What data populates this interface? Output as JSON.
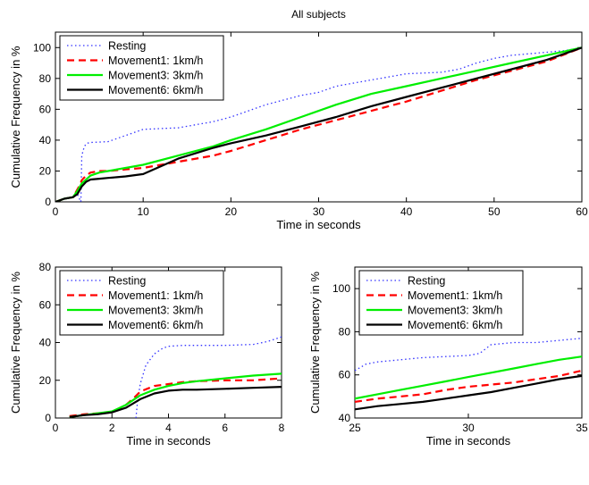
{
  "chart_data": [
    {
      "type": "line",
      "title": "All subjects",
      "xlabel": "Time in seconds",
      "ylabel": "Cumulative Frequency in %",
      "xlim": [
        0,
        60
      ],
      "ylim": [
        0,
        110
      ],
      "xticks": [
        0,
        10,
        20,
        30,
        40,
        50,
        60
      ],
      "yticks": [
        0,
        20,
        40,
        60,
        80,
        100
      ],
      "legend_position": "top-left",
      "series": [
        {
          "name": "Resting",
          "color": "#3333ff",
          "style": "dotted",
          "x": [
            0,
            0.5,
            1,
            2,
            2.5,
            2.9,
            3,
            3.3,
            3.6,
            4,
            6,
            8,
            9,
            10,
            14,
            18,
            20,
            22,
            24,
            26,
            28,
            30,
            32,
            34,
            36,
            38,
            40,
            44,
            46,
            48,
            50,
            52,
            54,
            56,
            58,
            60
          ],
          "y": [
            0,
            1,
            2,
            3,
            5,
            0,
            30,
            36,
            38,
            38.5,
            39,
            43,
            45,
            47,
            48,
            52,
            55,
            59,
            63,
            66,
            69,
            71,
            75,
            77,
            79,
            81,
            83,
            84,
            86,
            90,
            93,
            95,
            96,
            97,
            98,
            100
          ]
        },
        {
          "name": "Movement1: 1km/h",
          "color": "#ff0000",
          "style": "dashed",
          "x": [
            0,
            0.5,
            1,
            2,
            2.8,
            3,
            3.5,
            4,
            5,
            6,
            8,
            10,
            14,
            18,
            20,
            24,
            28,
            32,
            36,
            40,
            44,
            48,
            52,
            56,
            60
          ],
          "y": [
            0,
            1,
            2,
            3,
            11,
            14,
            17,
            19,
            20,
            20,
            21,
            22,
            26,
            30,
            33,
            40,
            47,
            53,
            59,
            65,
            72,
            79,
            85,
            91,
            100
          ]
        },
        {
          "name": "Movement3: 3km/h",
          "color": "#00ee00",
          "style": "solid",
          "x": [
            0,
            0.5,
            1,
            2,
            2.5,
            3,
            4,
            5,
            6,
            7,
            8,
            10,
            14,
            18,
            20,
            24,
            28,
            32,
            36,
            40,
            44,
            48,
            52,
            56,
            60
          ],
          "y": [
            0,
            1,
            2,
            3,
            7,
            12,
            17,
            19,
            20,
            21,
            22,
            24,
            30,
            36,
            40,
            47,
            55,
            63,
            70,
            75,
            80,
            85,
            90,
            95,
            100
          ]
        },
        {
          "name": "Movement6: 6km/h",
          "color": "#000000",
          "style": "solid",
          "x": [
            0,
            0.5,
            1,
            2,
            2.5,
            3,
            3.5,
            4,
            5,
            6,
            7,
            8,
            10,
            14,
            18,
            20,
            24,
            28,
            32,
            36,
            40,
            44,
            48,
            52,
            56,
            60
          ],
          "y": [
            0,
            1,
            2,
            3,
            5,
            10,
            13,
            14.5,
            15,
            15.5,
            16,
            16.5,
            18,
            28,
            35,
            38,
            43,
            49,
            55,
            62,
            68,
            74,
            80,
            86,
            92,
            100
          ]
        }
      ]
    },
    {
      "type": "line",
      "title": "",
      "xlabel": "Time in seconds",
      "ylabel": "Cumulative Frequency in %",
      "xlim": [
        0,
        8
      ],
      "ylim": [
        0,
        80
      ],
      "xticks": [
        0,
        2,
        4,
        6,
        8
      ],
      "yticks": [
        0,
        20,
        40,
        60,
        80
      ],
      "legend_position": "top-left",
      "series": [
        {
          "name": "Resting",
          "color": "#3333ff",
          "style": "dotted",
          "x": [
            2.85,
            2.9,
            3,
            3.2,
            3.5,
            3.8,
            4,
            4.5,
            5,
            6,
            7,
            7.5,
            8
          ],
          "y": [
            0,
            8,
            18,
            28,
            34,
            37,
            38,
            38.5,
            38.5,
            38.5,
            39,
            40.5,
            43
          ]
        },
        {
          "name": "Movement1: 1km/h",
          "color": "#ff0000",
          "style": "dashed",
          "x": [
            0.5,
            1,
            1.5,
            2,
            2.5,
            2.8,
            3,
            3.5,
            4,
            4.5,
            5,
            6,
            7,
            8
          ],
          "y": [
            1,
            2,
            2.5,
            3,
            7,
            11,
            14,
            17,
            18,
            19,
            19.5,
            20,
            20,
            21
          ]
        },
        {
          "name": "Movement3: 3km/h",
          "color": "#00ee00",
          "style": "solid",
          "x": [
            0.5,
            1,
            1.5,
            2,
            2.5,
            3,
            3.5,
            4,
            4.5,
            5,
            6,
            7,
            8
          ],
          "y": [
            0.5,
            1.5,
            2.5,
            3.5,
            7,
            12,
            15,
            17,
            18.5,
            19.5,
            21,
            22.5,
            23.5
          ]
        },
        {
          "name": "Movement6: 6km/h",
          "color": "#000000",
          "style": "solid",
          "x": [
            0.5,
            1,
            1.5,
            2,
            2.5,
            3,
            3.5,
            4,
            4.5,
            5,
            6,
            7,
            8
          ],
          "y": [
            0.5,
            1.5,
            2,
            3,
            5.5,
            10,
            13,
            14.5,
            15,
            15,
            15.5,
            16,
            16.5
          ]
        }
      ]
    },
    {
      "type": "line",
      "title": "",
      "xlabel": "Time in seconds",
      "ylabel": "Cumulative Frequency in %",
      "xlim": [
        25,
        35
      ],
      "ylim": [
        40,
        110
      ],
      "xticks": [
        25,
        30,
        35
      ],
      "yticks": [
        40,
        60,
        80,
        100
      ],
      "legend_position": "top-left",
      "series": [
        {
          "name": "Resting",
          "color": "#3333ff",
          "style": "dotted",
          "x": [
            25,
            25.5,
            26,
            27,
            28,
            29,
            30,
            30.5,
            31,
            32,
            33,
            34,
            35
          ],
          "y": [
            62,
            65,
            66,
            67,
            68,
            68.5,
            69,
            70,
            74,
            75,
            75,
            76,
            77
          ]
        },
        {
          "name": "Movement1: 1km/h",
          "color": "#ff0000",
          "style": "dashed",
          "x": [
            25,
            26,
            27,
            28,
            29,
            30,
            31,
            32,
            33,
            34,
            35
          ],
          "y": [
            47.5,
            49,
            50,
            51,
            53,
            54.5,
            55.5,
            56.5,
            58,
            59.5,
            62
          ]
        },
        {
          "name": "Movement3: 3km/h",
          "color": "#00ee00",
          "style": "solid",
          "x": [
            25,
            26,
            27,
            28,
            29,
            30,
            31,
            32,
            33,
            34,
            35
          ],
          "y": [
            49,
            51,
            53,
            55,
            57,
            59,
            61,
            63,
            65,
            67,
            68.5
          ]
        },
        {
          "name": "Movement6: 6km/h",
          "color": "#000000",
          "style": "solid",
          "x": [
            25,
            26,
            27,
            28,
            29,
            30,
            31,
            32,
            33,
            34,
            35
          ],
          "y": [
            44,
            45.5,
            46.5,
            47.5,
            49,
            50.5,
            52,
            54,
            56,
            58,
            59.5
          ]
        }
      ]
    }
  ]
}
